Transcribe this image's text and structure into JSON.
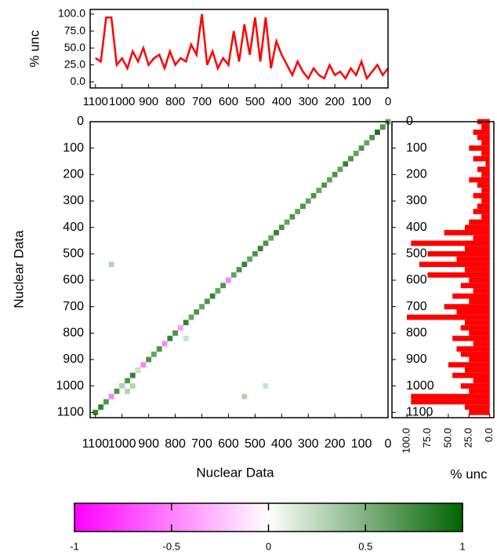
{
  "chart_data": [
    {
      "type": "line",
      "ylabel": "% unc",
      "color": "#ff0000",
      "x": [
        0,
        20,
        40,
        60,
        80,
        100,
        120,
        140,
        160,
        180,
        200,
        220,
        240,
        260,
        280,
        300,
        320,
        340,
        360,
        380,
        400,
        420,
        440,
        460,
        480,
        500,
        520,
        540,
        560,
        580,
        600,
        620,
        640,
        660,
        680,
        700,
        720,
        740,
        760,
        780,
        800,
        820,
        840,
        860,
        880,
        900,
        920,
        940,
        960,
        980,
        1000,
        1020,
        1040,
        1060,
        1080,
        1100
      ],
      "values": [
        20,
        10,
        25,
        15,
        5,
        30,
        10,
        20,
        5,
        15,
        10,
        25,
        5,
        10,
        20,
        5,
        15,
        30,
        10,
        25,
        40,
        60,
        20,
        95,
        30,
        95,
        40,
        85,
        30,
        75,
        25,
        35,
        20,
        45,
        25,
        100,
        40,
        55,
        30,
        35,
        25,
        45,
        20,
        40,
        35,
        25,
        50,
        30,
        45,
        20,
        35,
        25,
        95,
        95,
        30,
        35
      ],
      "xlim": [
        1120,
        0
      ],
      "xticks": [
        1100,
        1000,
        900,
        800,
        700,
        600,
        500,
        400,
        300,
        200,
        100,
        0
      ],
      "ylim": [
        -9,
        107
      ],
      "yticks": [
        {
          "value": 0,
          "label": "0.0"
        },
        {
          "value": 25,
          "label": "25.0"
        },
        {
          "value": 50,
          "label": "50.0"
        },
        {
          "value": 75,
          "label": "75.0"
        },
        {
          "value": 100,
          "label": "100.0"
        }
      ]
    },
    {
      "type": "heatmap",
      "xlabel": "Nuclear Data",
      "ylabel": "Nuclear Data",
      "x": [
        0,
        20,
        40,
        60,
        80,
        100,
        120,
        140,
        160,
        180,
        200,
        220,
        240,
        260,
        280,
        300,
        320,
        340,
        360,
        380,
        400,
        420,
        440,
        460,
        480,
        500,
        520,
        540,
        560,
        580,
        600,
        620,
        640,
        660,
        680,
        700,
        720,
        740,
        760,
        780,
        800,
        820,
        840,
        860,
        880,
        900,
        920,
        940,
        960,
        980,
        1000,
        1020,
        1040,
        1060,
        1080,
        1100,
        1040,
        1000,
        540,
        980,
        960,
        760,
        940,
        460
      ],
      "y": [
        0,
        20,
        40,
        60,
        80,
        100,
        120,
        140,
        160,
        180,
        200,
        220,
        240,
        260,
        280,
        300,
        320,
        340,
        360,
        380,
        400,
        420,
        440,
        460,
        480,
        500,
        520,
        540,
        560,
        580,
        600,
        620,
        640,
        660,
        680,
        700,
        720,
        740,
        760,
        780,
        800,
        820,
        840,
        860,
        880,
        900,
        920,
        940,
        960,
        980,
        1000,
        1020,
        1040,
        1060,
        1080,
        1100,
        540,
        1000,
        1040,
        1020,
        1000,
        820,
        940,
        1000
      ],
      "values": [
        0.6,
        0.7,
        0.9,
        0.7,
        0.6,
        0.7,
        0.6,
        0.7,
        0.8,
        0.6,
        0.7,
        0.6,
        0.7,
        0.6,
        0.7,
        0.6,
        0.7,
        0.6,
        0.7,
        0.6,
        0.7,
        0.8,
        0.6,
        0.7,
        0.8,
        0.7,
        0.6,
        0.8,
        0.7,
        0.6,
        -0.5,
        0.7,
        0.6,
        0.8,
        0.7,
        0.6,
        0.7,
        0.6,
        0.8,
        -0.4,
        0.7,
        0.8,
        -0.5,
        0.7,
        0.6,
        0.7,
        -0.5,
        0.7,
        0.8,
        0.7,
        0.6,
        0.7,
        -0.5,
        0.7,
        0.8,
        0.8,
        0.3,
        0.3,
        0.3,
        0.3,
        0.3,
        0.2,
        0.2,
        0.2
      ],
      "xlim": [
        1120,
        0
      ],
      "xticks": [
        1100,
        1000,
        900,
        800,
        700,
        600,
        500,
        400,
        300,
        200,
        100,
        0
      ],
      "ylim": [
        0,
        1120
      ],
      "yticks": [
        0,
        100,
        200,
        300,
        400,
        500,
        600,
        700,
        800,
        900,
        1000,
        1100
      ]
    },
    {
      "type": "hbar",
      "xlabel": "% unc",
      "color": "#ff0000",
      "y": [
        0,
        20,
        40,
        60,
        80,
        100,
        120,
        140,
        160,
        180,
        200,
        220,
        240,
        260,
        280,
        300,
        320,
        340,
        360,
        380,
        400,
        420,
        440,
        460,
        480,
        500,
        520,
        540,
        560,
        580,
        600,
        620,
        640,
        660,
        680,
        700,
        720,
        740,
        760,
        780,
        800,
        820,
        840,
        860,
        880,
        900,
        920,
        940,
        960,
        980,
        1000,
        1020,
        1040,
        1060,
        1080,
        1100
      ],
      "values": [
        15,
        10,
        20,
        15,
        10,
        25,
        10,
        20,
        5,
        15,
        10,
        25,
        15,
        10,
        20,
        10,
        15,
        20,
        10,
        25,
        30,
        55,
        20,
        95,
        30,
        75,
        40,
        85,
        30,
        75,
        25,
        35,
        20,
        45,
        25,
        55,
        40,
        100,
        30,
        35,
        25,
        45,
        20,
        40,
        35,
        25,
        50,
        30,
        45,
        20,
        35,
        25,
        95,
        95,
        30,
        25
      ],
      "xlim": [
        118,
        -5
      ],
      "xticks": [
        {
          "value": 100,
          "label": "100.0"
        },
        {
          "value": 75,
          "label": "75.0"
        },
        {
          "value": 50,
          "label": "50.0"
        },
        {
          "value": 25,
          "label": "25.0"
        },
        {
          "value": 0,
          "label": "0.0"
        }
      ],
      "ylim": [
        0,
        1120
      ],
      "yticks": [
        0,
        100,
        200,
        300,
        400,
        500,
        600,
        700,
        800,
        900,
        1000,
        1100
      ]
    },
    {
      "type": "colorbar",
      "colors": [
        "#ff00ff",
        "#ffffff",
        "#006400"
      ],
      "xlim": [
        -1,
        1
      ],
      "xticks": [
        -1,
        -0.5,
        0,
        0.5,
        1
      ]
    }
  ]
}
